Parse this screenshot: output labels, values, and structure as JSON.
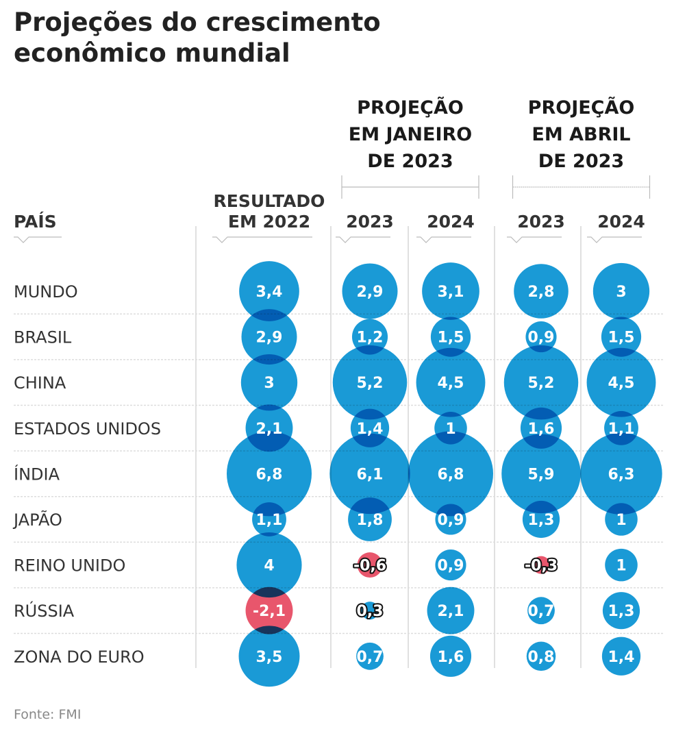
{
  "chart_data": {
    "type": "bubble-table",
    "title": "Projeções do crescimento econômico mundial",
    "title_lines": [
      "Projeções do crescimento",
      "econômico mundial"
    ],
    "row_header": "PAÍS",
    "column_groups": [
      {
        "label_lines": [
          "PROJEÇÃO",
          "EM JANEIRO",
          "DE 2023"
        ],
        "columns": [
          1,
          2
        ]
      },
      {
        "label_lines": [
          "PROJEÇÃO",
          "EM ABRIL",
          "DE 2023"
        ],
        "columns": [
          3,
          4
        ]
      }
    ],
    "columns": [
      {
        "label_lines": [
          "RESULTADO",
          "EM 2022"
        ]
      },
      {
        "label_lines": [
          "2023"
        ]
      },
      {
        "label_lines": [
          "2024"
        ]
      },
      {
        "label_lines": [
          "2023"
        ]
      },
      {
        "label_lines": [
          "2024"
        ]
      }
    ],
    "rows": [
      {
        "country": "MUNDO",
        "values": [
          3.4,
          2.9,
          3.1,
          2.8,
          3
        ],
        "labels": [
          "3,4",
          "2,9",
          "3,1",
          "2,8",
          "3"
        ]
      },
      {
        "country": "BRASIL",
        "values": [
          2.9,
          1.2,
          1.5,
          0.9,
          1.5
        ],
        "labels": [
          "2,9",
          "1,2",
          "1,5",
          "0,9",
          "1,5"
        ]
      },
      {
        "country": "CHINA",
        "values": [
          3,
          5.2,
          4.5,
          5.2,
          4.5
        ],
        "labels": [
          "3",
          "5,2",
          "4,5",
          "5,2",
          "4,5"
        ]
      },
      {
        "country": "ESTADOS UNIDOS",
        "values": [
          2.1,
          1.4,
          1,
          1.6,
          1.1
        ],
        "labels": [
          "2,1",
          "1,4",
          "1",
          "1,6",
          "1,1"
        ]
      },
      {
        "country": "ÍNDIA",
        "values": [
          6.8,
          6.1,
          6.8,
          5.9,
          6.3
        ],
        "labels": [
          "6,8",
          "6,1",
          "6,8",
          "5,9",
          "6,3"
        ]
      },
      {
        "country": "JAPÃO",
        "values": [
          1.1,
          1.8,
          0.9,
          1.3,
          1
        ],
        "labels": [
          "1,1",
          "1,8",
          "0,9",
          "1,3",
          "1"
        ]
      },
      {
        "country": "REINO UNIDO",
        "values": [
          4,
          -0.6,
          0.9,
          -0.3,
          1
        ],
        "labels": [
          "4",
          "-0,6",
          "0,9",
          "-0,3",
          "1"
        ]
      },
      {
        "country": "RÚSSIA",
        "values": [
          -2.1,
          0.3,
          2.1,
          0.7,
          1.3
        ],
        "labels": [
          "-2,1",
          "0,3",
          "2,1",
          "0,7",
          "1,3"
        ]
      },
      {
        "country": "ZONA DO EURO",
        "values": [
          3.5,
          0.7,
          1.6,
          0.8,
          1.4
        ],
        "labels": [
          "3,5",
          "0,7",
          "1,6",
          "0,8",
          "1,4"
        ]
      }
    ],
    "encoding": "bubble area proportional to absolute value",
    "colors": {
      "positive": "#1a9ad6",
      "negative": "#e8566c"
    },
    "source": "Fonte: FMI"
  }
}
